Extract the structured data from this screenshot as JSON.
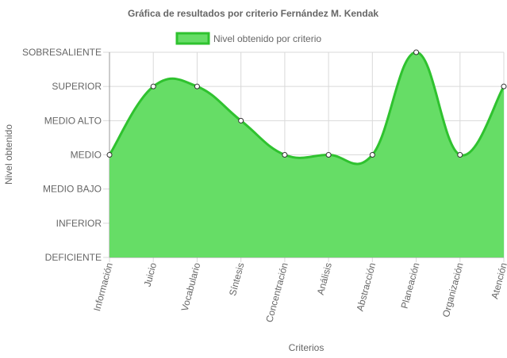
{
  "chart_data": {
    "type": "area",
    "title": "Gráfica de resultados por criterio Fernández M. Kendak",
    "xlabel": "Criterios",
    "ylabel": "Nivel obtenido",
    "categories": [
      "Información",
      "Juicio",
      "Vocabulario",
      "Síntesis",
      "Concentración",
      "Análisis",
      "Abstracción",
      "Planeación",
      "Organización",
      "Atención"
    ],
    "y_levels": [
      "DEFICIENTE",
      "INFERIOR",
      "MEDIO BAJO",
      "MEDIO",
      "MEDIO ALTO",
      "SUPERIOR",
      "SOBRESALIENTE"
    ],
    "ylim": [
      0,
      6
    ],
    "series": [
      {
        "name": "Nivel obtenido por criterio",
        "values": [
          3,
          5,
          5,
          4,
          3,
          3,
          3,
          6,
          3,
          5
        ],
        "levels": [
          "MEDIO",
          "SUPERIOR",
          "SUPERIOR",
          "MEDIO ALTO",
          "MEDIO",
          "MEDIO",
          "MEDIO",
          "SOBRESALIENTE",
          "MEDIO",
          "SUPERIOR"
        ]
      }
    ],
    "grid": true,
    "legend": "top-center",
    "colors": {
      "fill": "#66dd66",
      "line": "#2fc22f",
      "point_fill": "#ffffff",
      "point_stroke": "#333333",
      "grid": "#d9d9d9",
      "axis": "#999999"
    }
  }
}
